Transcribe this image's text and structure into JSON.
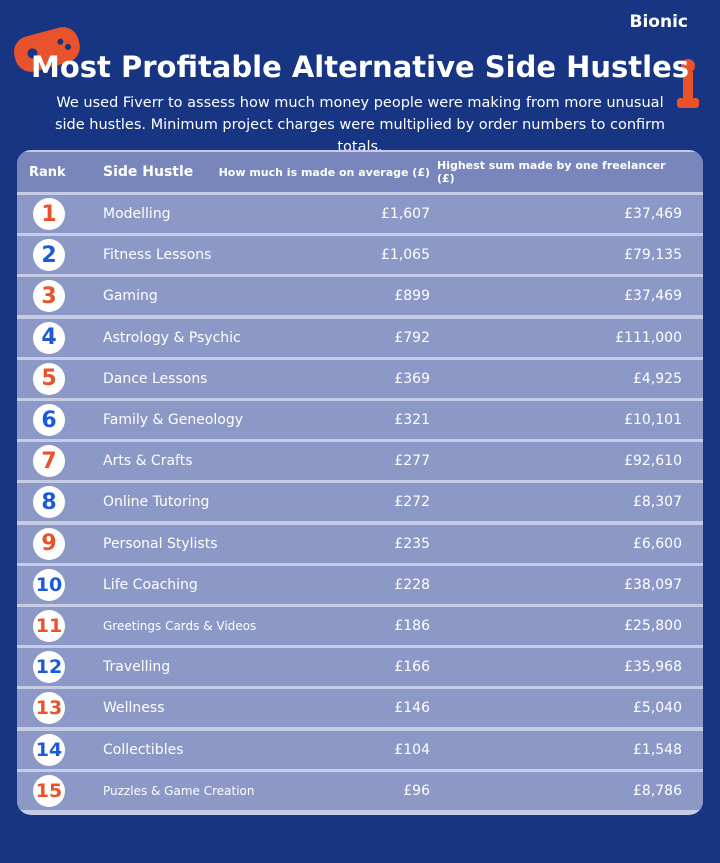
{
  "brand": "Bionic",
  "header": {
    "title": "Most Profitable Alternative Side Hustles",
    "subtitle": "We used Fiverr to assess how much money people were making from more unusual side hustles. Minimum project charges were multiplied by order numbers to confirm totals."
  },
  "table": {
    "columns": [
      "Rank",
      "Side Hustle",
      "How much is made on average (£)",
      "Highest sum made by one freelancer (£)"
    ],
    "rows": [
      [
        1,
        "Modelling",
        "£1,607",
        "£37,469"
      ],
      [
        2,
        "Fitness Lessons",
        "£1,065",
        "£79,135"
      ],
      [
        3,
        "Gaming",
        "£899",
        "£37,469"
      ],
      [
        4,
        "Astrology & Psychic",
        "£792",
        "£111,000"
      ],
      [
        5,
        "Dance Lessons",
        "£369",
        "£4,925"
      ],
      [
        6,
        "Family & Geneology",
        "£321",
        "£10,101"
      ],
      [
        7,
        "Arts & Crafts",
        "£277",
        "£92,610"
      ],
      [
        8,
        "Online Tutoring",
        "£272",
        "£8,307"
      ],
      [
        9,
        "Personal Stylists",
        "£235",
        "£6,600"
      ],
      [
        10,
        "Life Coaching",
        "£228",
        "£38,097"
      ],
      [
        11,
        "Greetings Cards & Videos",
        "£186",
        "£25,800"
      ],
      [
        12,
        "Travelling",
        "£166",
        "£35,968"
      ],
      [
        13,
        "Wellness",
        "£146",
        "£5,040"
      ],
      [
        14,
        "Collectibles",
        "£104",
        "£1,548"
      ],
      [
        15,
        "Puzzles & Game Creation",
        "£96",
        "£8,786"
      ]
    ]
  }
}
